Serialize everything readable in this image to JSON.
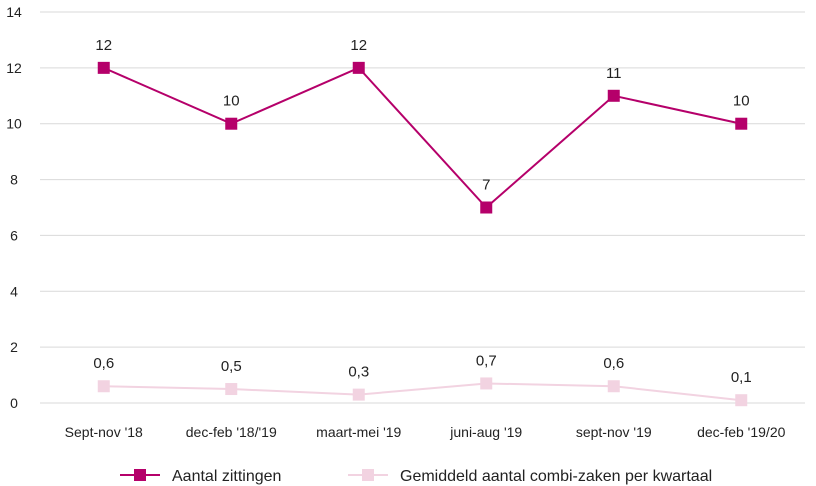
{
  "chart_data": {
    "type": "line",
    "categories": [
      "Sept-nov '18",
      "dec-feb '18/'19",
      "maart-mei '19",
      "juni-aug '19",
      "sept-nov '19",
      "dec-feb '19/20"
    ],
    "series": [
      {
        "name": "Aantal zittingen",
        "values": [
          12,
          10,
          12,
          7,
          11,
          10
        ],
        "labels": [
          "12",
          "10",
          "12",
          "7",
          "11",
          "10"
        ],
        "color": "#b5006a",
        "marker": "square"
      },
      {
        "name": "Gemiddeld aantal combi-zaken per kwartaal",
        "values": [
          0.6,
          0.5,
          0.3,
          0.7,
          0.6,
          0.1
        ],
        "labels": [
          "0,6",
          "0,5",
          "0,3",
          "0,7",
          "0,6",
          "0,1"
        ],
        "color": "#f2d3e1",
        "marker": "square"
      }
    ],
    "yticks": [
      "0",
      "2",
      "4",
      "6",
      "8",
      "10",
      "12",
      "14"
    ],
    "ylim": [
      0,
      14
    ],
    "grid": true,
    "legend_position": "bottom"
  }
}
